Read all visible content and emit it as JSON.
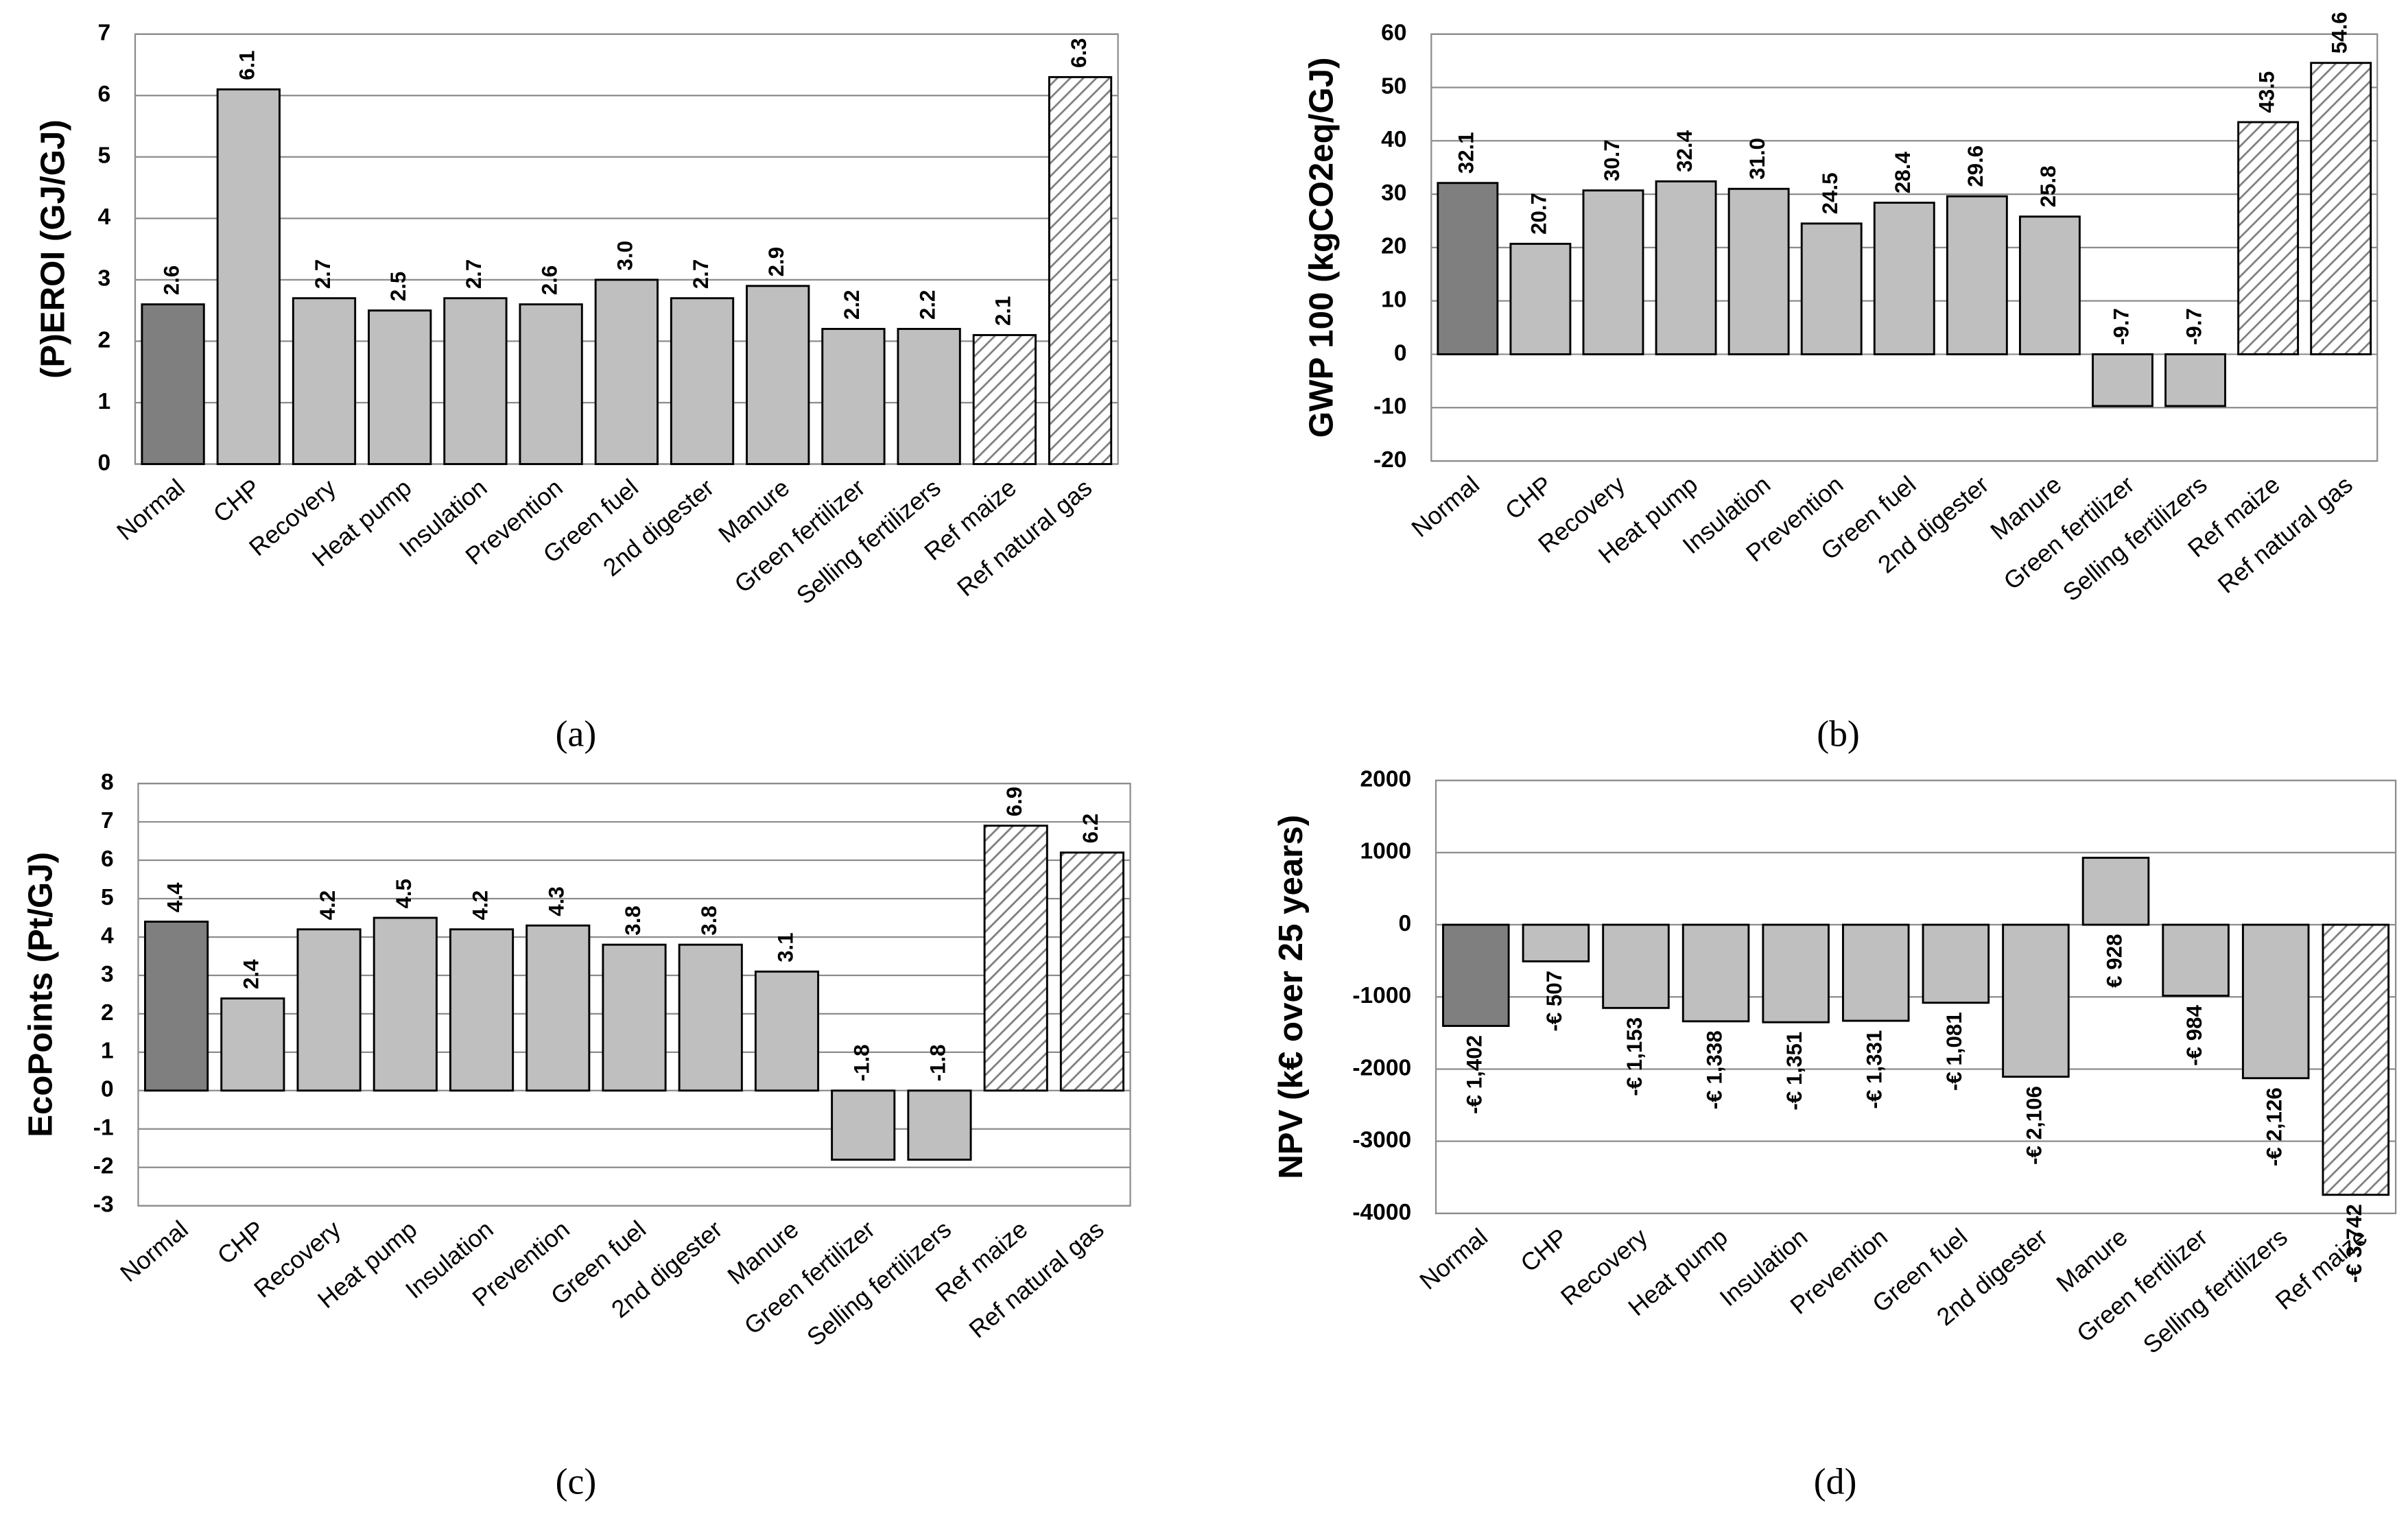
{
  "chart_data": [
    {
      "type": "bar",
      "caption": "(a)",
      "ylabel": "(P)EROI (GJ/GJ)",
      "categories": [
        "Normal",
        "CHP",
        "Recovery",
        "Heat pump",
        "Insulation",
        "Prevention",
        "Green fuel",
        "2nd digester",
        "Manure",
        "Green fertilizer",
        "Selling fertilizers",
        "Ref maize",
        "Ref natural gas"
      ],
      "values": [
        2.6,
        6.1,
        2.7,
        2.5,
        2.7,
        2.6,
        3.0,
        2.7,
        2.9,
        2.2,
        2.2,
        2.1,
        6.3
      ],
      "value_labels": [
        "2.6",
        "6.1",
        "2.7",
        "2.5",
        "2.7",
        "2.6",
        "3.0",
        "2.7",
        "2.9",
        "2.2",
        "2.2",
        "2.1",
        "6.3"
      ],
      "colors": [
        "#7f7f7f",
        "#bfbfbf",
        "#bfbfbf",
        "#bfbfbf",
        "#bfbfbf",
        "#bfbfbf",
        "#bfbfbf",
        "#bfbfbf",
        "#bfbfbf",
        "#bfbfbf",
        "#bfbfbf",
        "#ffffff",
        "#ffffff"
      ],
      "hatched": [
        false,
        false,
        false,
        false,
        false,
        false,
        false,
        false,
        false,
        false,
        false,
        true,
        true
      ],
      "value_label_position": "above",
      "ylim": [
        0,
        7
      ],
      "yticks": [
        0,
        1,
        2,
        3,
        4,
        5,
        6,
        7
      ],
      "grid": true
    },
    {
      "type": "bar",
      "caption": "(b)",
      "ylabel": "GWP 100 (kgCO2eq/GJ)",
      "categories": [
        "Normal",
        "CHP",
        "Recovery",
        "Heat pump",
        "Insulation",
        "Prevention",
        "Green fuel",
        "2nd digester",
        "Manure",
        "Green fertilizer",
        "Selling fertilizers",
        "Ref maize",
        "Ref natural gas"
      ],
      "values": [
        32.1,
        20.7,
        30.7,
        32.4,
        31.0,
        24.5,
        28.4,
        29.6,
        25.8,
        -9.7,
        -9.7,
        43.5,
        54.6
      ],
      "value_labels": [
        "32.1",
        "20.7",
        "30.7",
        "32.4",
        "31.0",
        "24.5",
        "28.4",
        "29.6",
        "25.8",
        "-9.7",
        "-9.7",
        "43.5",
        "54.6"
      ],
      "colors": [
        "#7f7f7f",
        "#bfbfbf",
        "#bfbfbf",
        "#bfbfbf",
        "#bfbfbf",
        "#bfbfbf",
        "#bfbfbf",
        "#bfbfbf",
        "#bfbfbf",
        "#bfbfbf",
        "#bfbfbf",
        "#ffffff",
        "#ffffff"
      ],
      "hatched": [
        false,
        false,
        false,
        false,
        false,
        false,
        false,
        false,
        false,
        false,
        false,
        true,
        true
      ],
      "value_label_position": "above",
      "ylim": [
        -20,
        60
      ],
      "yticks": [
        -20,
        -10,
        0,
        10,
        20,
        30,
        40,
        50,
        60
      ],
      "grid": true
    },
    {
      "type": "bar",
      "caption": "(c)",
      "ylabel": "EcoPoints (Pt/GJ)",
      "categories": [
        "Normal",
        "CHP",
        "Recovery",
        "Heat pump",
        "Insulation",
        "Prevention",
        "Green fuel",
        "2nd digester",
        "Manure",
        "Green fertilizer",
        "Selling fertilizers",
        "Ref maize",
        "Ref natural gas"
      ],
      "values": [
        4.4,
        2.4,
        4.2,
        4.5,
        4.2,
        4.3,
        3.8,
        3.8,
        3.1,
        -1.8,
        -1.8,
        6.9,
        6.2
      ],
      "value_labels": [
        "4.4",
        "2.4",
        "4.2",
        "4.5",
        "4.2",
        "4.3",
        "3.8",
        "3.8",
        "3.1",
        "-1.8",
        "-1.8",
        "6.9",
        "6.2"
      ],
      "colors": [
        "#7f7f7f",
        "#bfbfbf",
        "#bfbfbf",
        "#bfbfbf",
        "#bfbfbf",
        "#bfbfbf",
        "#bfbfbf",
        "#bfbfbf",
        "#bfbfbf",
        "#bfbfbf",
        "#bfbfbf",
        "#ffffff",
        "#ffffff"
      ],
      "hatched": [
        false,
        false,
        false,
        false,
        false,
        false,
        false,
        false,
        false,
        false,
        false,
        true,
        true
      ],
      "value_label_position": "above",
      "ylim": [
        -3,
        8
      ],
      "yticks": [
        -3,
        -2,
        -1,
        0,
        1,
        2,
        3,
        4,
        5,
        6,
        7,
        8
      ],
      "grid": true
    },
    {
      "type": "bar",
      "caption": "(d)",
      "ylabel": "NPV (k€ over 25 years)",
      "categories": [
        "Normal",
        "CHP",
        "Recovery",
        "Heat pump",
        "Insulation",
        "Prevention",
        "Green fuel",
        "2nd digester",
        "Manure",
        "Green fertilizer",
        "Selling fertilizers",
        "Ref maize"
      ],
      "values": [
        -1402,
        -507,
        -1153,
        -1338,
        -1351,
        -1331,
        -1081,
        -2106,
        928,
        -984,
        -2126,
        -3742
      ],
      "value_labels": [
        "-€ 1,402",
        "-€ 507",
        "-€ 1,153",
        "-€ 1,338",
        "-€ 1,351",
        "-€ 1,331",
        "-€ 1,081",
        "-€ 2,106",
        "€ 928",
        "-€ 984",
        "-€ 2,126",
        "-€ 3,742"
      ],
      "colors": [
        "#7f7f7f",
        "#bfbfbf",
        "#bfbfbf",
        "#bfbfbf",
        "#bfbfbf",
        "#bfbfbf",
        "#bfbfbf",
        "#bfbfbf",
        "#bfbfbf",
        "#bfbfbf",
        "#bfbfbf",
        "#ffffff"
      ],
      "hatched": [
        false,
        false,
        false,
        false,
        false,
        false,
        false,
        false,
        false,
        false,
        false,
        true
      ],
      "value_label_position": "below",
      "ylim": [
        -4000,
        2000
      ],
      "yticks": [
        -4000,
        -3000,
        -2000,
        -1000,
        0,
        1000,
        2000
      ],
      "grid": true
    }
  ]
}
